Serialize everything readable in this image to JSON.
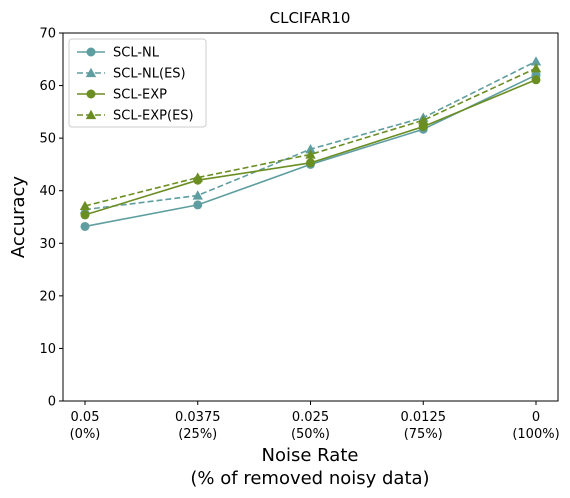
{
  "chart_data": {
    "type": "line",
    "title": "CLCIFAR10",
    "xlabel": [
      "Noise Rate",
      "(% of removed noisy data)"
    ],
    "ylabel": "Accuracy",
    "ylim": [
      0,
      70
    ],
    "yticks": [
      "0",
      "10",
      "20",
      "30",
      "40",
      "50",
      "60",
      "70"
    ],
    "categories": [
      [
        "0.05",
        "(0%)"
      ],
      [
        "0.0375",
        "(25%)"
      ],
      [
        "0.025",
        "(50%)"
      ],
      [
        "0.0125",
        "(75%)"
      ],
      [
        "0",
        "(100%)"
      ]
    ],
    "legend_position": "top-left",
    "grid": false,
    "series": [
      {
        "name": "SCL-NL",
        "values": [
          33.2,
          37.3,
          45.0,
          51.7,
          62.0
        ],
        "color": "#5f9ea0",
        "dashed": false,
        "marker": "circle"
      },
      {
        "name": "SCL-NL(ES)",
        "values": [
          36.4,
          39.1,
          47.9,
          53.9,
          64.6
        ],
        "color": "#5f9ea0",
        "dashed": true,
        "marker": "triangle"
      },
      {
        "name": "SCL-EXP",
        "values": [
          35.4,
          42.0,
          45.3,
          52.2,
          61.1
        ],
        "color": "#6b8e23",
        "dashed": false,
        "marker": "circle"
      },
      {
        "name": "SCL-EXP(ES)",
        "values": [
          37.1,
          42.5,
          46.9,
          53.4,
          63.3
        ],
        "color": "#6b8e23",
        "dashed": true,
        "marker": "triangle"
      }
    ]
  }
}
